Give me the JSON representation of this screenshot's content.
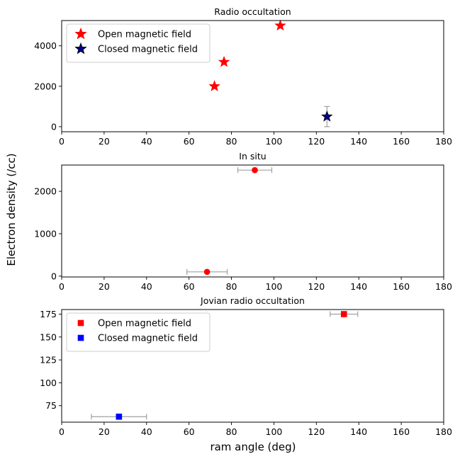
{
  "figure": {
    "ylabel": "Electron density (/cc)",
    "xlabel": "ram angle (deg)"
  },
  "chart_data": [
    {
      "type": "scatter",
      "title": "Radio occultation",
      "xlim": [
        0,
        180
      ],
      "ylim": [
        -250,
        5250
      ],
      "xticks": [
        0,
        20,
        40,
        60,
        80,
        100,
        120,
        140,
        160,
        180
      ],
      "yticks": [
        0,
        2000,
        4000
      ],
      "legend": "top-left",
      "marker": "star",
      "series": [
        {
          "name": "Open magnetic field",
          "color": "#ff0000",
          "points": [
            {
              "x": 72,
              "y": 2000
            },
            {
              "x": 76.5,
              "y": 3200
            },
            {
              "x": 103,
              "y": 5000
            }
          ]
        },
        {
          "name": "Closed magnetic field",
          "color": "#00008b",
          "points": [
            {
              "x": 125,
              "y": 500,
              "yerr": 500
            }
          ]
        }
      ]
    },
    {
      "type": "scatter",
      "title": "In situ",
      "xlim": [
        0,
        180
      ],
      "ylim": [
        -20,
        2620
      ],
      "xticks": [
        0,
        20,
        40,
        60,
        80,
        100,
        120,
        140,
        160,
        180
      ],
      "yticks": [
        0,
        1000,
        2000
      ],
      "marker": "circle",
      "series": [
        {
          "color": "#ff0000",
          "points": [
            {
              "x": 91,
              "y": 2500,
              "xerr": 8
            },
            {
              "x": 68.5,
              "y": 100,
              "xerr": 9.5
            }
          ]
        }
      ]
    },
    {
      "type": "scatter",
      "title": "Jovian radio occultation",
      "xlim": [
        0,
        180
      ],
      "ylim": [
        57,
        180
      ],
      "xticks": [
        0,
        20,
        40,
        60,
        80,
        100,
        120,
        140,
        160,
        180
      ],
      "yticks": [
        75,
        100,
        125,
        150,
        175
      ],
      "legend": "top-left",
      "marker": "square",
      "series": [
        {
          "name": "Open magnetic field",
          "color": "#ff0000",
          "points": [
            {
              "x": 133,
              "y": 175,
              "xerr": 6.5
            }
          ]
        },
        {
          "name": "Closed magnetic field",
          "color": "#0000ff",
          "points": [
            {
              "x": 27,
              "y": 63,
              "xerr": 13
            }
          ]
        }
      ]
    }
  ]
}
